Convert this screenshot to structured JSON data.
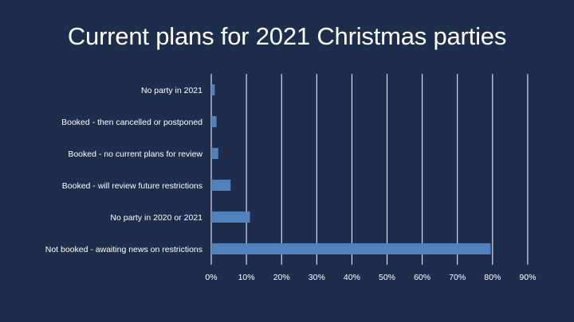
{
  "theme": {
    "background": "#1f2d4d",
    "bar_color": "#4f81bd",
    "grid_color": "#ffffff",
    "text_color": "#ffffff"
  },
  "chart_data": {
    "type": "bar",
    "orientation": "horizontal",
    "title": "Current plans for 2021 Christmas parties",
    "categories": [
      "No party in 2021",
      "Booked - then cancelled or postponed",
      "Booked - no current plans for review",
      "Booked - will review future restrictions",
      "No party in 2020 or 2021",
      "Not booked - awaiting news on restrictions"
    ],
    "values": [
      1,
      1.5,
      2,
      5.5,
      11,
      79.5
    ],
    "unit": "%",
    "xlim": [
      0,
      90
    ],
    "xticks": [
      "0%",
      "10%",
      "20%",
      "30%",
      "40%",
      "50%",
      "60%",
      "70%",
      "80%",
      "90%"
    ],
    "grid": "vertical",
    "legend": "none"
  }
}
